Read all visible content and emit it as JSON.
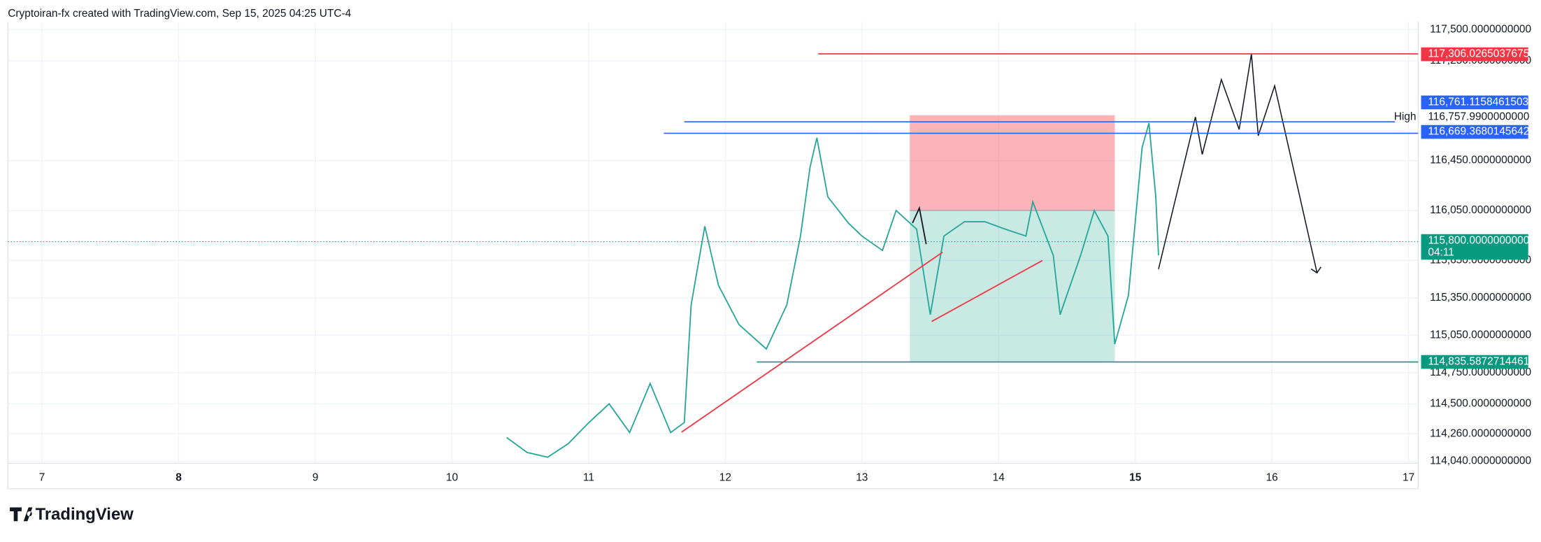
{
  "header": {
    "title": "Cryptoiran-fx created with TradingView.com, Sep 15, 2025 04:25 UTC-4"
  },
  "logo": "TradingView",
  "chart_data": {
    "type": "line",
    "color": "#26a69a",
    "x": [
      10.4,
      10.55,
      10.7,
      10.85,
      11.0,
      11.15,
      11.3,
      11.45,
      11.6,
      11.7,
      11.75,
      11.85,
      11.95,
      12.1,
      12.3,
      12.45,
      12.55,
      12.62,
      12.67,
      12.75,
      12.9,
      13.0,
      13.15,
      13.25,
      13.4,
      13.5,
      13.6,
      13.75,
      13.9,
      14.05,
      14.2,
      14.25,
      14.4,
      14.45,
      14.6,
      14.7,
      14.8,
      14.85,
      14.95,
      15.05,
      15.1,
      15.15,
      15.17
    ],
    "values": [
      114230,
      114110,
      114072,
      114180,
      114348,
      114500,
      114270,
      114663,
      114270,
      114350,
      115293,
      115924,
      115450,
      115136,
      114940,
      115293,
      115845,
      116397,
      116633,
      116160,
      115950,
      115845,
      115730,
      116050,
      115900,
      115215,
      115845,
      115960,
      115960,
      115900,
      115845,
      116120,
      115690,
      115215,
      115690,
      116050,
      115845,
      114978,
      115370,
      116554,
      116751,
      116160,
      115690
    ],
    "xlim": [
      6.75,
      17.07
    ],
    "ylim": [
      114032,
      117563
    ],
    "xticks": [
      7,
      8,
      9,
      10,
      11,
      12,
      13,
      14,
      15,
      16,
      17
    ],
    "bold_xticks": [
      8,
      15
    ],
    "yticks": [
      {
        "value": 117500,
        "label": "117,500.0000000000"
      },
      {
        "value": 117250,
        "label": "117,250.0000000000"
      },
      {
        "value": 116450,
        "label": "116,450.0000000000"
      },
      {
        "value": 116050,
        "label": "116,050.0000000000"
      },
      {
        "value": 115650,
        "label": "115,650.0000000000"
      },
      {
        "value": 115350,
        "label": "115,350.0000000000"
      },
      {
        "value": 115050,
        "label": "115,050.0000000000"
      },
      {
        "value": 114750,
        "label": "114,750.0000000000"
      },
      {
        "value": 114500,
        "label": "114,500.0000000000"
      },
      {
        "value": 114260,
        "label": "114,260.0000000000"
      },
      {
        "value": 114040,
        "label": "114,040.0000000000"
      }
    ],
    "grid": true,
    "price_tags": [
      {
        "value": 117306.0265037675,
        "label": "117,306.0265037675",
        "color": "#f23645",
        "from": 12.68
      },
      {
        "value": 116761.1158461503,
        "label": "116,761.1158461503",
        "color": "#2962ff",
        "from": 11.7,
        "to": 16.9
      },
      {
        "value": 116757.99,
        "label": "116,757.9900000000",
        "text": "High"
      },
      {
        "value": 116669.3680145642,
        "label": "116,669.3680145642",
        "color": "#2962ff",
        "from": 11.55
      },
      {
        "value": 115800,
        "label": "115,800.0000000000",
        "color": "#089981",
        "countdown": "04:11",
        "dotted": true
      },
      {
        "value": 114835.5872714461,
        "label": "114,835.5872714461",
        "color": "#089981",
        "from": 12.23
      }
    ],
    "position": {
      "from": 13.35,
      "to": 14.85,
      "stop": 116814,
      "entry": 116050,
      "target": 114835.5872714461
    },
    "trend_lines": [
      {
        "x": [
          11.68,
          13.59
        ],
        "y": [
          114273,
          115716
        ],
        "color": "#f23645"
      },
      {
        "x": [
          13.51,
          14.32
        ],
        "y": [
          115160,
          115649
        ],
        "color": "#f23645"
      },
      {
        "x": [
          13.37,
          13.42,
          13.47
        ],
        "y": [
          115950,
          116070,
          115780
        ],
        "color": "#131722"
      }
    ],
    "projection": {
      "x": [
        15.17,
        15.44,
        15.49,
        15.63,
        15.76,
        15.85,
        15.9,
        16.02,
        16.33
      ],
      "y": [
        115580,
        116800,
        116500,
        117100,
        116700,
        117306,
        116650,
        117050,
        115550
      ],
      "color": "#131722"
    }
  }
}
